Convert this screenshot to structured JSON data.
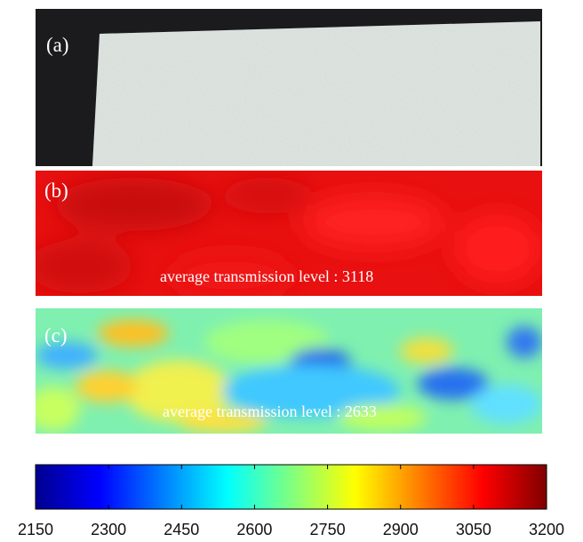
{
  "panels": [
    {
      "label": "(a)"
    },
    {
      "label": "(b)",
      "annotation": "average transmission level : 3118"
    },
    {
      "label": "(c)",
      "annotation": "average transmission level : 2633"
    }
  ],
  "colorbar": {
    "range": [
      2150,
      3200
    ],
    "ticks": [
      2150,
      2300,
      2450,
      2600,
      2750,
      2900,
      3050,
      3200
    ]
  }
}
